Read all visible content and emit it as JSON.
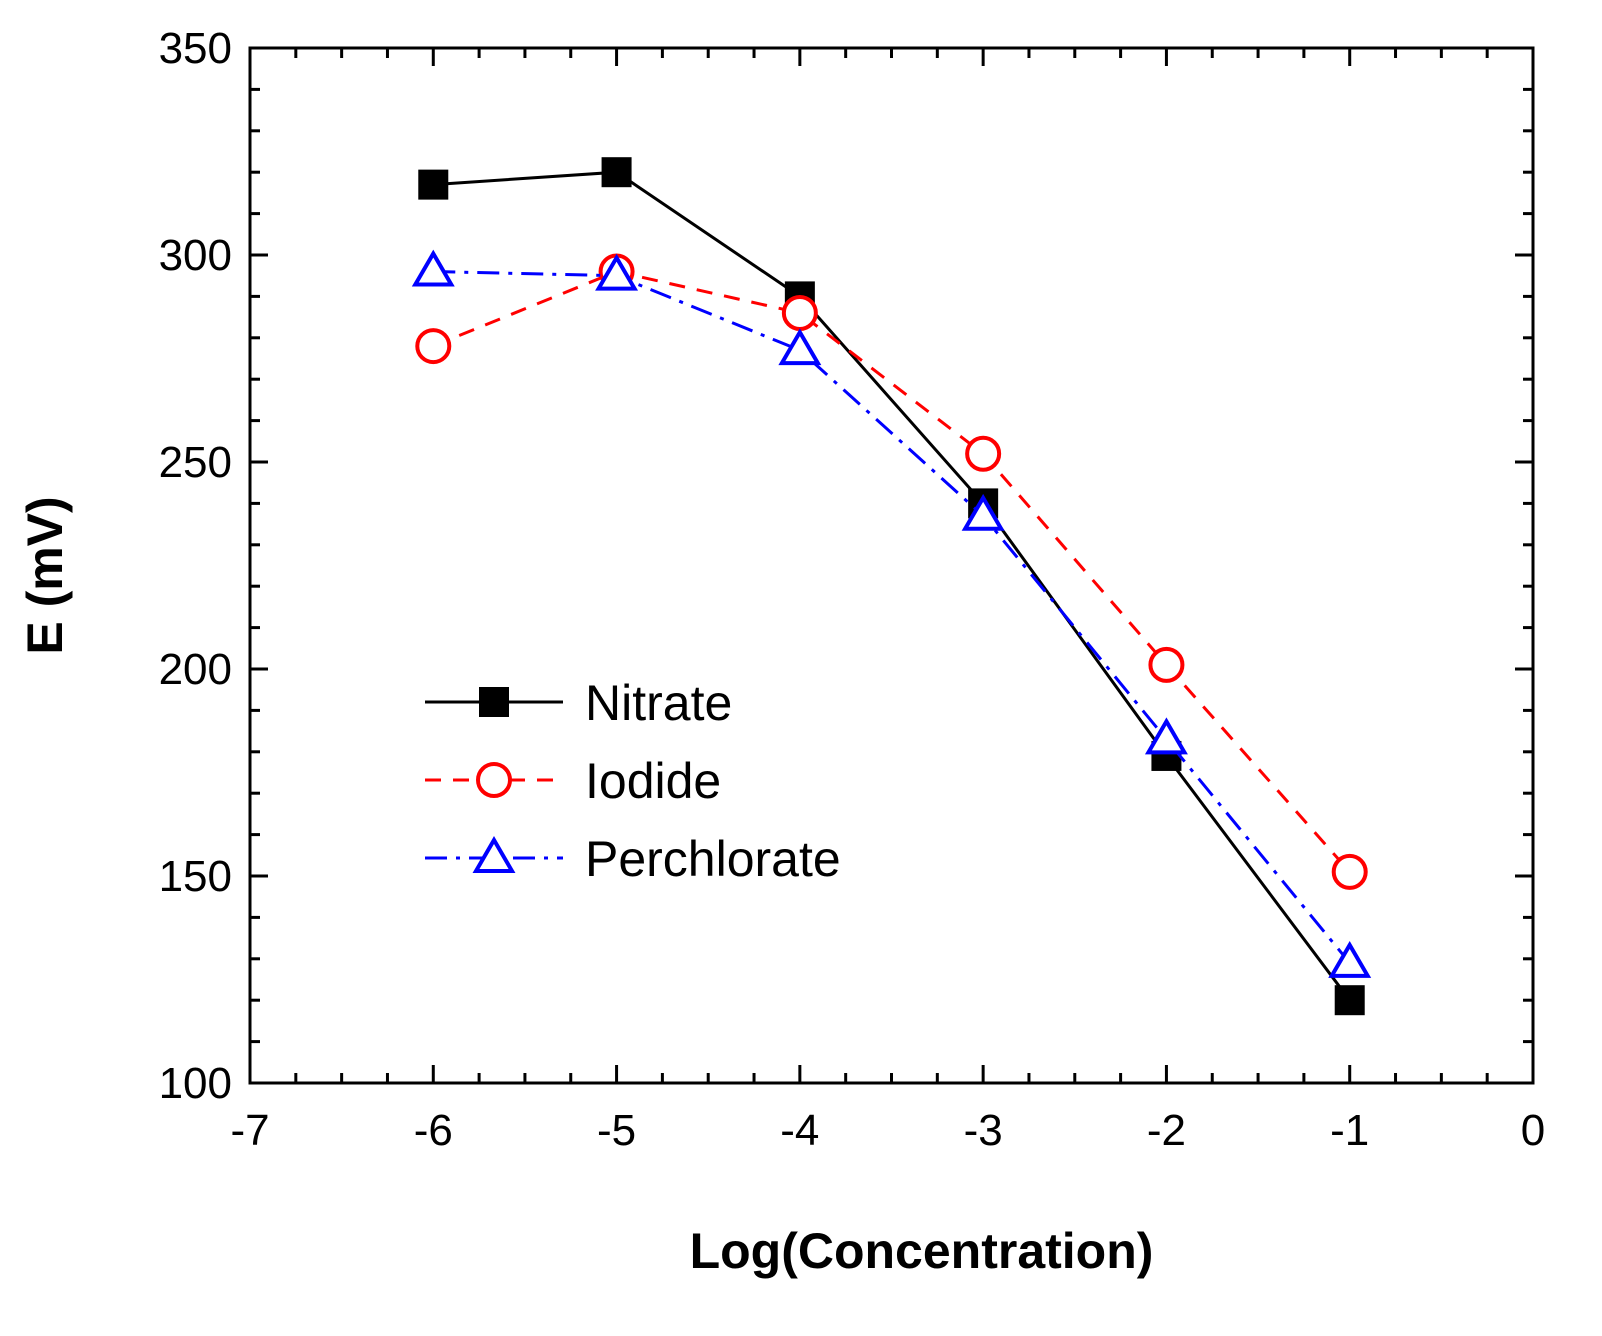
{
  "chart_data": {
    "type": "line",
    "title": "",
    "xlabel": "Log(Concentration)",
    "ylabel": "E (mV)",
    "xlim": [
      -7,
      0
    ],
    "ylim": [
      100,
      350
    ],
    "x": [
      -6,
      -5,
      -4,
      -3,
      -2,
      -1
    ],
    "xticks": [
      -7,
      -6,
      -5,
      -4,
      -3,
      -2,
      -1,
      0
    ],
    "yticks": [
      100,
      150,
      200,
      250,
      300,
      350
    ],
    "xtick_labels": [
      "-7",
      "-6",
      "-5",
      "-4",
      "-3",
      "-2",
      "-1",
      "0"
    ],
    "ytick_labels": [
      "100",
      "150",
      "200",
      "250",
      "300",
      "350"
    ],
    "grid": false,
    "legend_position": "center-left",
    "series": [
      {
        "name": "Nitrate",
        "values": [
          317,
          320,
          290,
          240,
          179,
          120
        ],
        "color": "#000000",
        "marker": "filled-square",
        "line_style": "solid"
      },
      {
        "name": "Iodide",
        "values": [
          278,
          296,
          286,
          252,
          201,
          151
        ],
        "color": "#ff0000",
        "marker": "open-circle",
        "line_style": "dashed"
      },
      {
        "name": "Perchlorate",
        "values": [
          296,
          295,
          277,
          237,
          183,
          129
        ],
        "color": "#0000ff",
        "marker": "open-triangle",
        "line_style": "dash-dot"
      }
    ]
  }
}
